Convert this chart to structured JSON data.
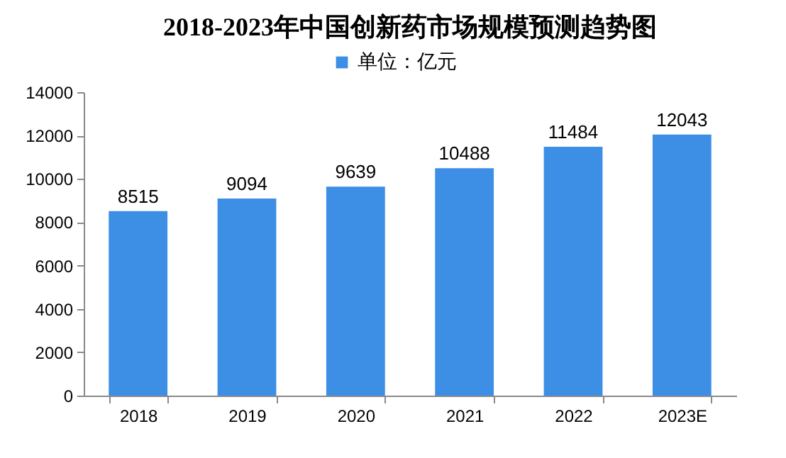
{
  "chart_data": {
    "type": "bar",
    "title": "2018-2023年中国创新药市场规模预测趋势图",
    "categories": [
      "2018",
      "2019",
      "2020",
      "2021",
      "2022",
      "2023E"
    ],
    "series": [
      {
        "name": "单位：亿元",
        "color": "#3d8fe6",
        "values": [
          8515,
          9094,
          9639,
          10488,
          11484,
          12043
        ]
      }
    ],
    "ylim": [
      0,
      14000
    ],
    "yticks": [
      0,
      2000,
      4000,
      6000,
      8000,
      10000,
      12000,
      14000
    ],
    "data_labels": true,
    "legend": "top"
  }
}
